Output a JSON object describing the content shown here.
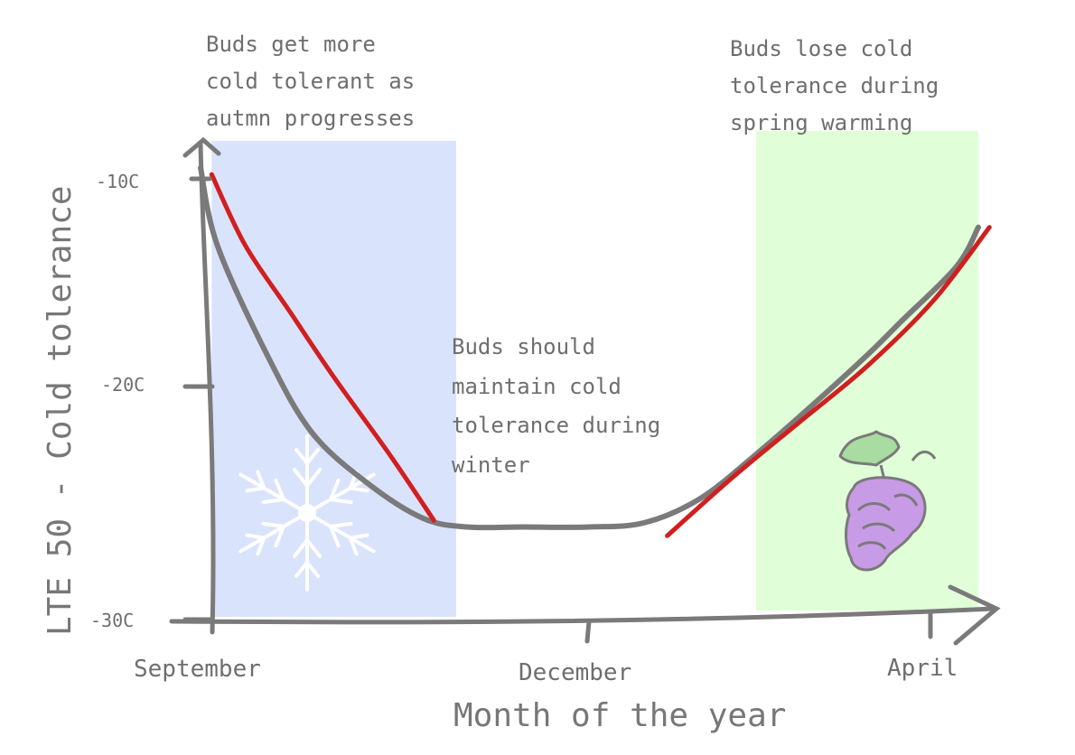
{
  "chart_data": {
    "type": "line",
    "title": "",
    "xlabel": "Month of the year",
    "ylabel": "LTE 50 - Cold tolerance",
    "x_tick_labels": [
      "September",
      "December",
      "April"
    ],
    "y_tick_labels": [
      "-10C",
      "-20C",
      "-30C"
    ],
    "y_ticks": [
      -10,
      -20,
      -30
    ],
    "ylim": [
      -30,
      -9
    ],
    "grid": false,
    "legend": null,
    "series": [
      {
        "color": "#7a7a7a",
        "x": [
          0,
          0.15,
          0.6,
          1.0,
          1.5,
          2.0,
          2.4,
          2.9,
          3.5,
          4.0,
          4.5,
          5.0,
          5.5,
          6.0,
          6.3,
          6.8,
          7.0
        ],
        "y": [
          -9.5,
          -13.0,
          -18.0,
          -21.5,
          -23.8,
          -25.4,
          -25.8,
          -25.8,
          -25.8,
          -25.6,
          -24.5,
          -22.5,
          -20.3,
          -18.0,
          -16.5,
          -14.0,
          -12.2
        ]
      },
      {
        "color": "#d11f1f",
        "x": [
          0.1,
          0.4,
          0.8,
          1.2,
          1.7,
          2.1
        ],
        "y": [
          -9.8,
          -13.0,
          -16.0,
          -19.0,
          -22.5,
          -25.5
        ]
      },
      {
        "color": "#d11f1f",
        "x": [
          4.2,
          4.8,
          5.4,
          6.0,
          6.6,
          7.1
        ],
        "y": [
          -26.2,
          -23.5,
          -21.0,
          -18.5,
          -15.5,
          -12.2
        ]
      }
    ],
    "shaded_regions": [
      {
        "x": [
          0.1,
          2.3
        ],
        "color": "#dae3fc"
      },
      {
        "x": [
          5.0,
          7.0
        ],
        "color": "#e0ffd8"
      }
    ],
    "annotations": [
      {
        "lines": [
          "Buds get more",
          "cold tolerant as",
          "autmn progresses"
        ]
      },
      {
        "lines": [
          "Buds should",
          "maintain cold",
          "tolerance during",
          "winter"
        ]
      },
      {
        "lines": [
          "Buds lose cold",
          "tolerance during",
          "spring warming"
        ]
      }
    ]
  },
  "icons": {
    "snowflake": "snowflake-icon",
    "grapes": "grapes-icon"
  },
  "colors": {
    "axis": "#7a7a7a",
    "red": "#d11f1f",
    "snow": "#ffffff",
    "grape_fill": "#c89be6",
    "leaf_fill": "#a8dca0"
  }
}
